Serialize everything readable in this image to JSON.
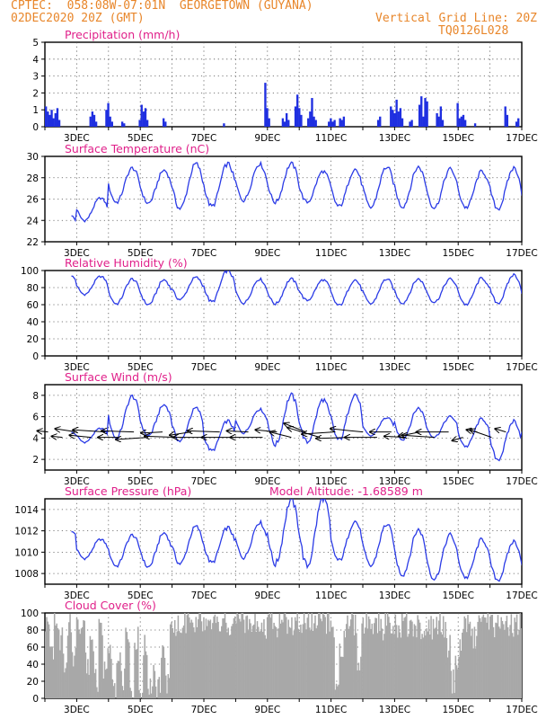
{
  "header": {
    "line1": "CPTEC:  058:08W-07:01N  GEORGETOWN (GUYANA)",
    "line2": "02DEC2020 20Z (GMT)",
    "grid_note": "Vertical Grid Line: 20Z",
    "run_id": "TQ0126L028"
  },
  "colors": {
    "line": "#2b3be6",
    "bar": "#1f2fe0",
    "cloud": "#a8a8a8",
    "title": "#e0208a",
    "header": "#e8862a"
  },
  "chart_data": [
    {
      "type": "bar",
      "title": "Precipitation (mm/h)",
      "x_start_day": 2,
      "x_end_day": 17,
      "xticks": [
        "3DEC",
        "5DEC",
        "7DEC",
        "9DEC",
        "11DEC",
        "13DEC",
        "15DEC",
        "17DEC"
      ],
      "ylim": [
        0,
        5
      ],
      "yticks": [
        0,
        1,
        2,
        3,
        4,
        5
      ],
      "events": [
        {
          "t": 2.0,
          "v": [
            1.2,
            0.9,
            0.7,
            1.0,
            0.5,
            0.8,
            1.1,
            0.4
          ]
        },
        {
          "t": 3.4,
          "v": [
            0.6,
            0.9,
            0.7,
            0.3
          ]
        },
        {
          "t": 3.9,
          "v": [
            1.0,
            1.4,
            0.6,
            0.3
          ]
        },
        {
          "t": 4.4,
          "v": [
            0.3,
            0.2
          ]
        },
        {
          "t": 4.95,
          "v": [
            0.4,
            1.3,
            0.9,
            1.1,
            0.4
          ]
        },
        {
          "t": 5.7,
          "v": [
            0.5,
            0.3
          ]
        },
        {
          "t": 7.6,
          "v": [
            0.2
          ]
        },
        {
          "t": 8.9,
          "v": [
            2.6,
            1.1,
            0.5
          ]
        },
        {
          "t": 9.45,
          "v": [
            0.5,
            0.3,
            0.8,
            0.4
          ]
        },
        {
          "t": 9.85,
          "v": [
            1.2,
            1.9,
            1.1,
            0.7
          ]
        },
        {
          "t": 10.25,
          "v": [
            0.5,
            0.9,
            1.7,
            0.6,
            0.4
          ]
        },
        {
          "t": 10.9,
          "v": [
            0.3,
            0.5,
            0.3,
            0.4
          ]
        },
        {
          "t": 11.25,
          "v": [
            0.5,
            0.4,
            0.6
          ]
        },
        {
          "t": 12.45,
          "v": [
            0.4,
            0.6
          ]
        },
        {
          "t": 12.85,
          "v": [
            1.2,
            1.0,
            0.8,
            1.6,
            0.9,
            1.1,
            0.5
          ]
        },
        {
          "t": 13.45,
          "v": [
            0.3,
            0.4
          ]
        },
        {
          "t": 13.75,
          "v": [
            1.3,
            1.8,
            0.6,
            1.7,
            1.5
          ]
        },
        {
          "t": 14.3,
          "v": [
            0.8,
            0.6,
            1.2,
            0.4
          ]
        },
        {
          "t": 14.95,
          "v": [
            1.4,
            0.5,
            0.6,
            0.7,
            0.4
          ]
        },
        {
          "t": 15.5,
          "v": [
            0.2
          ]
        },
        {
          "t": 16.45,
          "v": [
            1.2,
            0.7
          ]
        },
        {
          "t": 16.8,
          "v": [
            0.3,
            0.5
          ]
        }
      ]
    },
    {
      "type": "line",
      "title": "Surface Temperature (nC)",
      "x_start_day": 2,
      "x_end_day": 17,
      "xticks": [
        "3DEC",
        "5DEC",
        "7DEC",
        "9DEC",
        "11DEC",
        "13DEC",
        "15DEC",
        "17DEC"
      ],
      "ylim": [
        22,
        30
      ],
      "yticks": [
        22,
        24,
        26,
        28,
        30
      ],
      "daily_max": [
        24.6,
        26.1,
        28.9,
        28.7,
        29.3,
        29.3,
        29.3,
        29.3,
        28.6,
        28.8,
        29.0,
        29.0,
        28.8,
        28.6,
        28.9,
        27.7
      ],
      "daily_min": [
        23.0,
        24.0,
        25.7,
        25.6,
        25.1,
        25.3,
        25.9,
        25.7,
        25.7,
        25.3,
        25.2,
        25.3,
        25.2,
        25.2,
        25.1,
        25.0
      ]
    },
    {
      "type": "line",
      "title": "Relative Humidity (%)",
      "x_start_day": 2,
      "x_end_day": 17,
      "xticks": [
        "3DEC",
        "5DEC",
        "7DEC",
        "9DEC",
        "11DEC",
        "13DEC",
        "15DEC",
        "17DEC"
      ],
      "ylim": [
        0,
        100
      ],
      "yticks": [
        0,
        20,
        40,
        60,
        80,
        100
      ],
      "daily_max": [
        95,
        93,
        90,
        89,
        92,
        100,
        90,
        90,
        89,
        89,
        90,
        90,
        90,
        91,
        95,
        82
      ],
      "daily_min": [
        80,
        72,
        61,
        60,
        66,
        63,
        62,
        61,
        65,
        59,
        61,
        62,
        63,
        60,
        62,
        64
      ]
    },
    {
      "type": "line",
      "title": "Surface Wind (m/s)",
      "x_start_day": 2,
      "x_end_day": 17,
      "xticks": [
        "3DEC",
        "5DEC",
        "7DEC",
        "9DEC",
        "11DEC",
        "13DEC",
        "15DEC",
        "17DEC"
      ],
      "ylim": [
        1,
        9
      ],
      "yticks": [
        2,
        4,
        6,
        8
      ],
      "daily_max": [
        4.6,
        4.9,
        7.9,
        7.1,
        6.8,
        5.6,
        6.7,
        8.0,
        7.6,
        8.1,
        5.9,
        6.8,
        6.0,
        5.8,
        5.6,
        5.3
      ],
      "daily_min": [
        3.9,
        3.6,
        4.0,
        4.2,
        3.7,
        2.8,
        4.5,
        3.4,
        3.6,
        3.8,
        4.2,
        3.9,
        4.1,
        3.2,
        2.0,
        3.6
      ],
      "vectors_u": [
        -1,
        -1,
        -2,
        -2,
        -3,
        -2,
        -3,
        -3,
        -2,
        -3,
        -2,
        -3,
        -3,
        -3,
        -2,
        -3,
        -2,
        -2,
        -2,
        -3,
        -3,
        -3,
        -3,
        -3,
        -2,
        -2,
        -2,
        -3,
        -3,
        -1,
        -1,
        -2,
        -1
      ],
      "vectors_v": [
        0.1,
        0.1,
        0.3,
        0.2,
        0.2,
        0.0,
        0.1,
        -0.2,
        -0.1,
        0.1,
        -0.3,
        0.0,
        0.1,
        0.0,
        0.1,
        0.0,
        0.2,
        0.5,
        0.8,
        0.9,
        -0.2,
        -0.1,
        0.3,
        0.0,
        0.0,
        0.1,
        -0.4,
        0.2,
        0.0,
        -0.3,
        0.2,
        0.7,
        0.3
      ]
    },
    {
      "type": "line",
      "title": "Surface Pressure (hPa)",
      "annotation": "Model Altitude: -1.68589 m",
      "x_start_day": 2,
      "x_end_day": 17,
      "xticks": [
        "3DEC",
        "5DEC",
        "7DEC",
        "9DEC",
        "11DEC",
        "13DEC",
        "15DEC",
        "17DEC"
      ],
      "ylim": [
        1007,
        1015
      ],
      "yticks": [
        1008,
        1010,
        1012,
        1014
      ],
      "daily_max": [
        1012.0,
        1011.2,
        1011.6,
        1011.8,
        1012.4,
        1012.3,
        1012.8,
        1014.9,
        1015.1,
        1012.9,
        1012.6,
        1012.1,
        1011.6,
        1011.2,
        1011.0,
        1010.2
      ],
      "daily_min": [
        1011.2,
        1009.4,
        1008.7,
        1008.6,
        1008.9,
        1009.0,
        1009.5,
        1008.9,
        1008.7,
        1009.2,
        1008.7,
        1007.9,
        1007.5,
        1007.6,
        1007.4,
        1007.4
      ]
    },
    {
      "type": "area",
      "title": "Cloud Cover (%)",
      "x_start_day": 2,
      "x_end_day": 17,
      "xticks": [
        "3DEC",
        "5DEC",
        "7DEC",
        "9DEC",
        "11DEC",
        "13DEC",
        "15DEC",
        "17DEC"
      ],
      "ylim": [
        0,
        100
      ],
      "yticks": [
        0,
        20,
        40,
        60,
        80,
        100
      ],
      "six_hourly": [
        88,
        60,
        90,
        70,
        40,
        85,
        50,
        80,
        88,
        40,
        70,
        20,
        85,
        30,
        60,
        10,
        40,
        20,
        75,
        15,
        70,
        10,
        60,
        15,
        25,
        12,
        55,
        20,
        80,
        85,
        90,
        88,
        92,
        86,
        90,
        88,
        93,
        90,
        95,
        85,
        90,
        80,
        95,
        92,
        88,
        84,
        90,
        85,
        90,
        80,
        95,
        90,
        85,
        88,
        88,
        85,
        90,
        80,
        86,
        90,
        92,
        90,
        94,
        88,
        80,
        20,
        60,
        85,
        90,
        85,
        40,
        88,
        90,
        80,
        86,
        82,
        88,
        84,
        85,
        80,
        88,
        86,
        84,
        85,
        80,
        88,
        82,
        86,
        90,
        85,
        60,
        20,
        40,
        70,
        88,
        80,
        70,
        85,
        86,
        88,
        84,
        85,
        88,
        82,
        86,
        85,
        88
      ]
    }
  ]
}
